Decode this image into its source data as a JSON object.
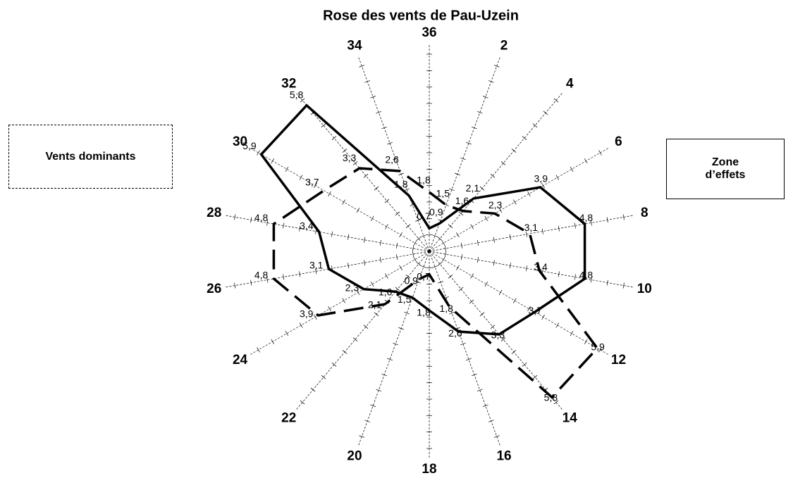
{
  "chart_data": {
    "type": "radar",
    "title": "Rose des vents de Pau-Uzein",
    "categories": [
      "36",
      "2",
      "4",
      "6",
      "8",
      "10",
      "12",
      "14",
      "16",
      "18",
      "20",
      "22",
      "24",
      "26",
      "28",
      "30",
      "32",
      "34"
    ],
    "series": [
      {
        "name": "Vents dominants",
        "color": "#000000",
        "line_style": "dashed",
        "values": [
          1.8,
          1.5,
          1.6,
          2.3,
          3.1,
          3.4,
          5.9,
          5.8,
          1.8,
          0.7,
          0.9,
          2.1,
          3.9,
          4.8,
          4.8,
          3.7,
          3.3,
          2.6
        ],
        "value_labels": [
          "1,8",
          "1,5",
          "1,6",
          "2,3",
          "3,1",
          "3,4",
          "5,9",
          "5,8",
          "1,8",
          "0,7",
          "0,9",
          "2,1",
          "3,9",
          "4,8",
          "4,8",
          "3,7",
          "3,3",
          "2,6"
        ]
      },
      {
        "name": "Zone d’effets",
        "color": "#000000",
        "line_style": "solid",
        "values": [
          0.7,
          0.9,
          2.1,
          3.9,
          4.8,
          4.8,
          3.7,
          3.3,
          2.6,
          1.8,
          1.5,
          1.6,
          2.3,
          3.1,
          3.4,
          5.9,
          5.8,
          1.8
        ],
        "value_labels": [
          "0,7",
          "0,9",
          "2,1",
          "3,9",
          "4,8",
          "4,8",
          "3,7",
          "3,3",
          "2,6",
          "1,8",
          "1,5",
          "1,6",
          "2,3",
          "3,1",
          "3,4",
          "5,9",
          "5,8",
          "1,8"
        ]
      }
    ],
    "rlim": [
      0,
      6
    ],
    "rticks": [
      0,
      0.5,
      1,
      1.5,
      2,
      2.5,
      3,
      3.5,
      4,
      4.5,
      5,
      5.5,
      6
    ],
    "legend": "sides"
  }
}
